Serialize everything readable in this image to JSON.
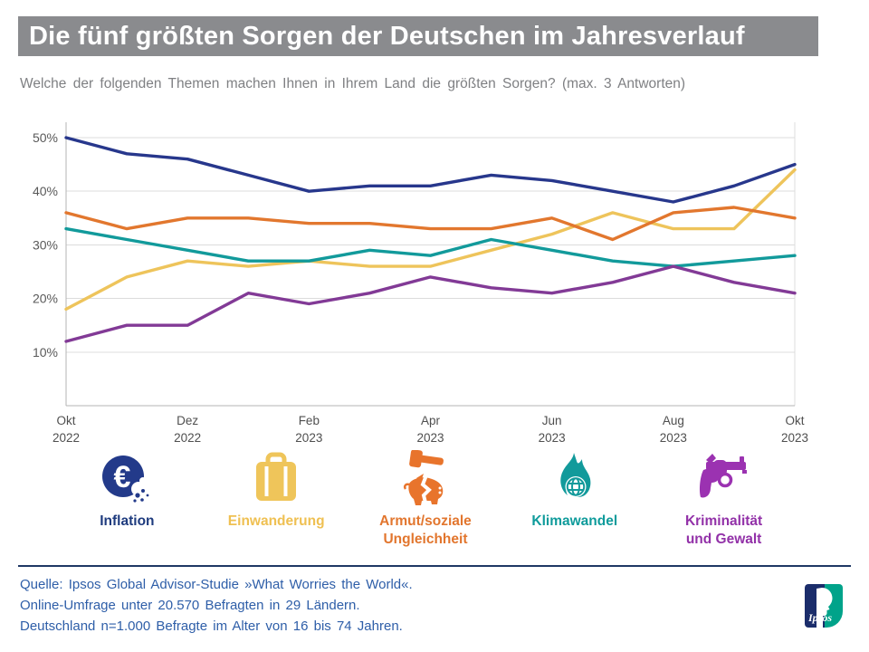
{
  "header": {
    "title": "Die fünf größten Sorgen der Deutschen im Jahresverlauf",
    "subtitle": "Welche der folgenden Themen machen Ihnen in Ihrem Land die größten Sorgen? (max. 3 Antworten)"
  },
  "chart_data": {
    "type": "line",
    "title": "Die fünf größten Sorgen der Deutschen im Jahresverlauf",
    "x": [
      "Okt 2022",
      "Nov 2022",
      "Dez 2022",
      "Jan 2023",
      "Feb 2023",
      "Mär 2023",
      "Apr 2023",
      "Mai 2023",
      "Jun 2023",
      "Jul 2023",
      "Aug 2023",
      "Sep 2023",
      "Okt 2023"
    ],
    "x_tick_indices": [
      0,
      2,
      4,
      6,
      8,
      10,
      12
    ],
    "x_tick_labels": [
      [
        "Okt",
        "2022"
      ],
      [
        "Dez",
        "2022"
      ],
      [
        "Feb",
        "2023"
      ],
      [
        "Apr",
        "2023"
      ],
      [
        "Jun",
        "2023"
      ],
      [
        "Aug",
        "2023"
      ],
      [
        "Okt",
        "2023"
      ]
    ],
    "yticks": [
      10,
      20,
      30,
      40,
      50
    ],
    "ytick_suffix": "%",
    "ylim": [
      0,
      53
    ],
    "grid": true,
    "legend_position": "bottom",
    "series": [
      {
        "name": "Inflation",
        "color": "#27378C",
        "values": [
          50,
          47,
          46,
          43,
          40,
          41,
          41,
          43,
          42,
          40,
          38,
          41,
          45
        ]
      },
      {
        "name": "Einwanderung",
        "color": "#EEC45B",
        "values": [
          18,
          24,
          27,
          26,
          27,
          26,
          26,
          29,
          32,
          36,
          33,
          33,
          44
        ]
      },
      {
        "name": "Armut/soziale Ungleichheit",
        "color": "#E2772E",
        "values": [
          36,
          33,
          35,
          35,
          34,
          34,
          33,
          33,
          35,
          31,
          36,
          37,
          35
        ]
      },
      {
        "name": "Klimawandel",
        "color": "#129A9B",
        "values": [
          33,
          31,
          29,
          27,
          27,
          29,
          28,
          31,
          29,
          27,
          26,
          27,
          28
        ]
      },
      {
        "name": "Kriminalität und Gewalt",
        "color": "#823A96",
        "values": [
          12,
          15,
          15,
          21,
          19,
          21,
          24,
          22,
          21,
          23,
          26,
          23,
          21
        ]
      }
    ]
  },
  "legend": {
    "items": [
      {
        "icon": "euro-coin-icon",
        "label_lines": [
          "Inflation"
        ],
        "color": "#1E3B7E"
      },
      {
        "icon": "suitcase-icon",
        "label_lines": [
          "Einwanderung"
        ],
        "color": "#EFC052"
      },
      {
        "icon": "gavel-piggy-bank-icon",
        "label_lines": [
          "Armut/soziale",
          "Ungleichheit"
        ],
        "color": "#E2762E"
      },
      {
        "icon": "flame-globe-icon",
        "label_lines": [
          "Klimawandel"
        ],
        "color": "#0F9B9B"
      },
      {
        "icon": "revolver-icon",
        "label_lines": [
          "Kriminalität",
          "und Gewalt"
        ],
        "color": "#9231A8"
      }
    ]
  },
  "source": {
    "lines": [
      "Quelle: Ipsos Global Advisor-Studie »What Worries the World«.",
      "Online-Umfrage unter 20.570 Befragten in 29 Ländern.",
      "Deutschland n=1.000 Befragte im Alter von 16 bis 74 Jahren."
    ]
  },
  "logo": {
    "text": "Ipsos",
    "navy": "#1B2D6B",
    "teal": "#00A38A"
  }
}
